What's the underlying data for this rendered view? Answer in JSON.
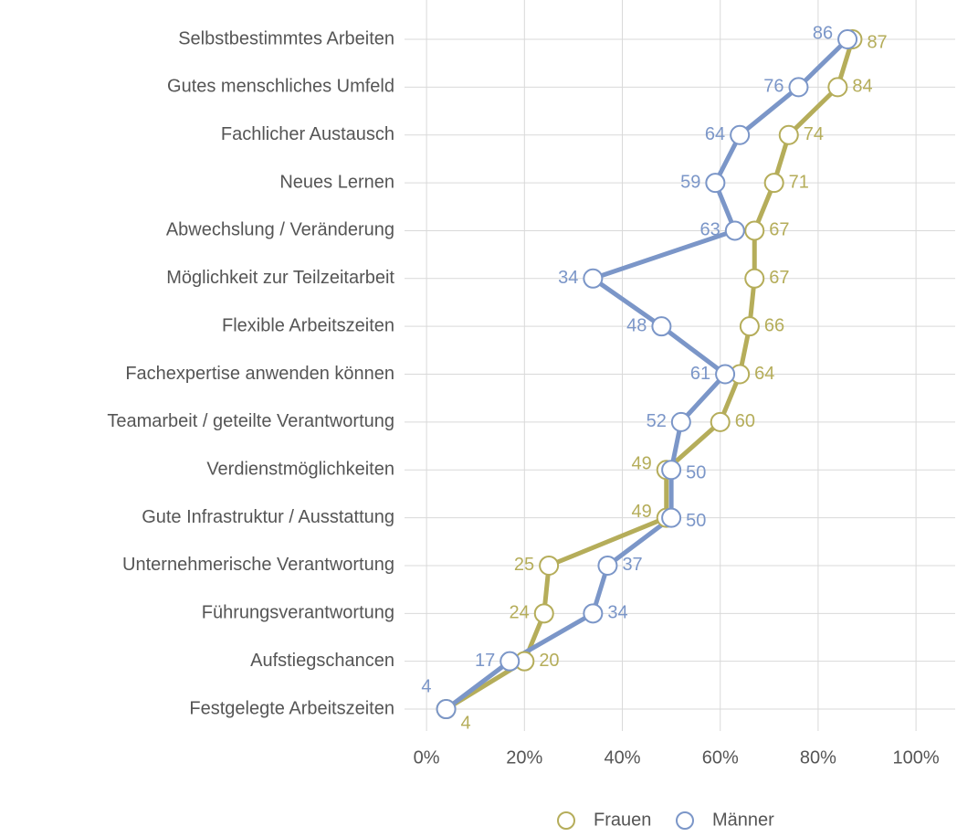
{
  "chart_data": {
    "type": "dot-line",
    "categories": [
      "Selbstbestimmtes Arbeiten",
      "Gutes menschliches Umfeld",
      "Fachlicher Austausch",
      "Neues Lernen",
      "Abwechslung / Veränderung",
      "Möglichkeit zur Teilzeitarbeit",
      "Flexible Arbeitszeiten",
      "Fachexpertise anwenden können",
      "Teamarbeit / geteilte Verantwortung",
      "Verdienstmöglichkeiten",
      "Gute Infrastruktur / Ausstattung",
      "Unternehmerische Verantwortung",
      "Führungsverantwortung",
      "Aufstiegschancen",
      "Festgelegte Arbeitszeiten"
    ],
    "series": [
      {
        "name": "Frauen",
        "color": "#b5ad5a",
        "values": [
          87,
          84,
          74,
          71,
          67,
          67,
          66,
          64,
          60,
          49,
          49,
          25,
          24,
          20,
          4
        ]
      },
      {
        "name": "Männer",
        "color": "#7b96c8",
        "values": [
          86,
          76,
          64,
          59,
          63,
          34,
          48,
          61,
          52,
          50,
          50,
          37,
          34,
          17,
          4
        ]
      }
    ],
    "xlim": [
      -4.5,
      108
    ],
    "xticks": [
      {
        "value": 0,
        "label": "0%"
      },
      {
        "value": 20,
        "label": "20%"
      },
      {
        "value": 40,
        "label": "40%"
      },
      {
        "value": 60,
        "label": "60%"
      },
      {
        "value": 80,
        "label": "80%"
      },
      {
        "value": 100,
        "label": "100%"
      }
    ],
    "grid": true,
    "legend": "bottom"
  }
}
